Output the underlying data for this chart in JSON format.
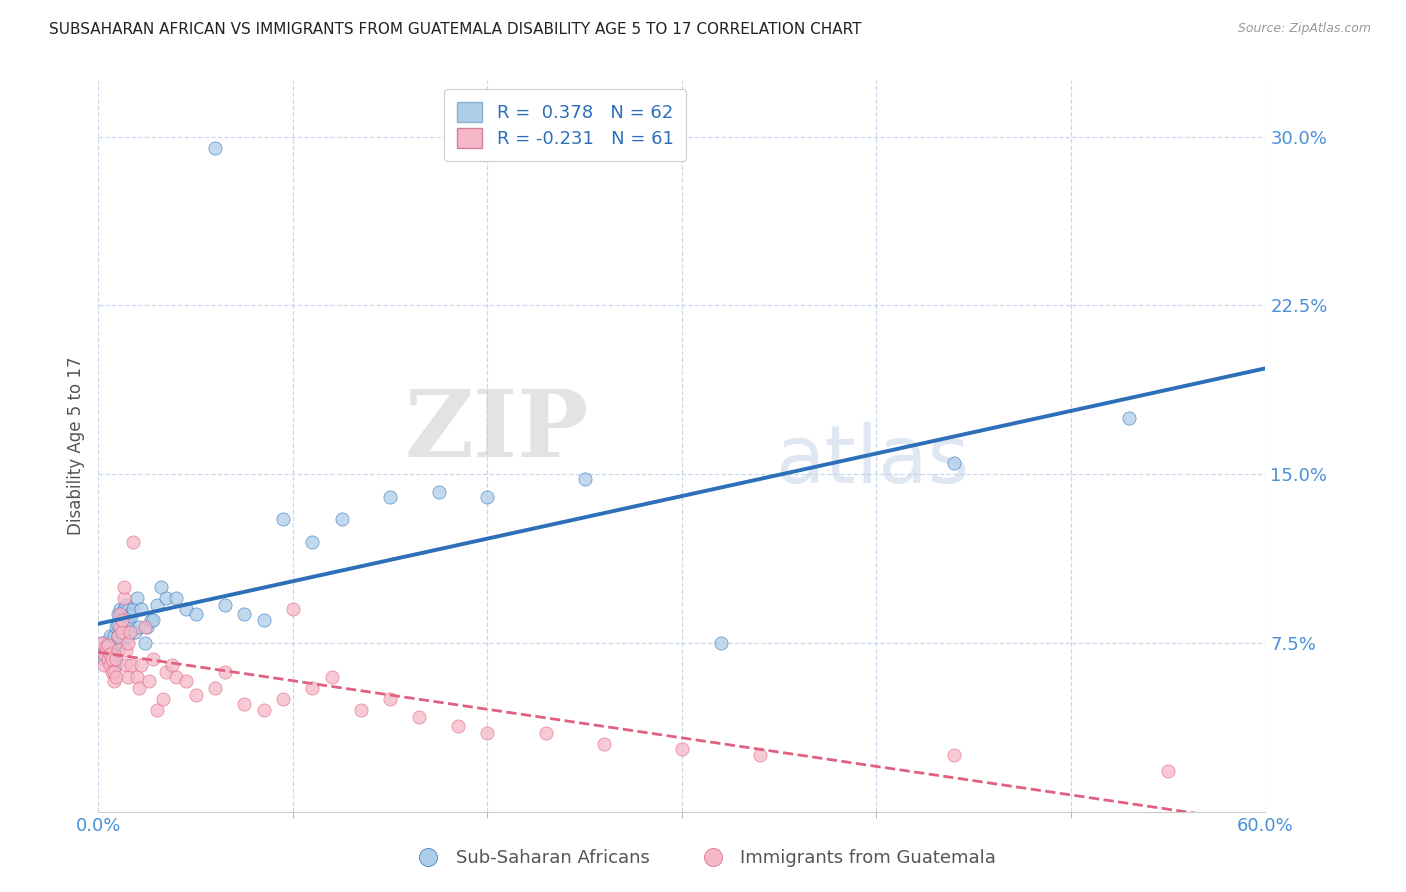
{
  "title": "SUBSAHARAN AFRICAN VS IMMIGRANTS FROM GUATEMALA DISABILITY AGE 5 TO 17 CORRELATION CHART",
  "source": "Source: ZipAtlas.com",
  "ylabel": "Disability Age 5 to 17",
  "xmin": 0.0,
  "xmax": 0.6,
  "ymin": 0.0,
  "ymax": 0.325,
  "yticks": [
    0.0,
    0.075,
    0.15,
    0.225,
    0.3
  ],
  "ytick_labels": [
    "",
    "7.5%",
    "15.0%",
    "22.5%",
    "30.0%"
  ],
  "xtick_positions": [
    0.0,
    0.6
  ],
  "xtick_labels": [
    "0.0%",
    "60.0%"
  ],
  "blue_R": 0.378,
  "blue_N": 62,
  "pink_R": -0.231,
  "pink_N": 61,
  "blue_color": "#aecde8",
  "blue_line_color": "#2e6fba",
  "pink_color": "#f4b8c8",
  "pink_line_color": "#e06080",
  "blue_label": "Sub-Saharan Africans",
  "pink_label": "Immigrants from Guatemala",
  "watermark_zip": "ZIP",
  "watermark_atlas": "atlas",
  "background_color": "#ffffff",
  "grid_color": "#c8d8ec",
  "title_color": "#222222",
  "axis_label_color": "#555555",
  "tick_label_color": "#4a90d9",
  "blue_scatter_x": [
    0.002,
    0.003,
    0.003,
    0.004,
    0.005,
    0.005,
    0.006,
    0.006,
    0.007,
    0.007,
    0.008,
    0.008,
    0.008,
    0.009,
    0.009,
    0.009,
    0.01,
    0.01,
    0.01,
    0.01,
    0.011,
    0.011,
    0.012,
    0.012,
    0.013,
    0.013,
    0.014,
    0.014,
    0.015,
    0.015,
    0.015,
    0.016,
    0.017,
    0.018,
    0.019,
    0.02,
    0.021,
    0.022,
    0.024,
    0.025,
    0.027,
    0.028,
    0.03,
    0.032,
    0.035,
    0.04,
    0.045,
    0.05,
    0.06,
    0.065,
    0.075,
    0.085,
    0.095,
    0.11,
    0.125,
    0.15,
    0.175,
    0.2,
    0.25,
    0.32,
    0.44,
    0.53
  ],
  "blue_scatter_y": [
    0.075,
    0.07,
    0.068,
    0.072,
    0.073,
    0.076,
    0.075,
    0.078,
    0.07,
    0.074,
    0.068,
    0.072,
    0.078,
    0.065,
    0.07,
    0.082,
    0.075,
    0.078,
    0.083,
    0.088,
    0.076,
    0.09,
    0.075,
    0.08,
    0.082,
    0.09,
    0.085,
    0.092,
    0.078,
    0.085,
    0.09,
    0.088,
    0.087,
    0.09,
    0.08,
    0.095,
    0.082,
    0.09,
    0.075,
    0.082,
    0.085,
    0.085,
    0.092,
    0.1,
    0.095,
    0.095,
    0.09,
    0.088,
    0.295,
    0.092,
    0.088,
    0.085,
    0.13,
    0.12,
    0.13,
    0.14,
    0.142,
    0.14,
    0.148,
    0.075,
    0.155,
    0.175
  ],
  "pink_scatter_x": [
    0.002,
    0.003,
    0.003,
    0.004,
    0.005,
    0.005,
    0.006,
    0.006,
    0.007,
    0.007,
    0.008,
    0.008,
    0.009,
    0.009,
    0.01,
    0.01,
    0.011,
    0.011,
    0.012,
    0.012,
    0.013,
    0.013,
    0.014,
    0.014,
    0.015,
    0.015,
    0.016,
    0.017,
    0.018,
    0.02,
    0.021,
    0.022,
    0.024,
    0.026,
    0.028,
    0.03,
    0.033,
    0.035,
    0.038,
    0.04,
    0.045,
    0.05,
    0.06,
    0.065,
    0.075,
    0.085,
    0.095,
    0.1,
    0.11,
    0.12,
    0.135,
    0.15,
    0.165,
    0.185,
    0.2,
    0.23,
    0.26,
    0.3,
    0.34,
    0.44,
    0.55
  ],
  "pink_scatter_y": [
    0.075,
    0.07,
    0.065,
    0.073,
    0.068,
    0.074,
    0.07,
    0.065,
    0.062,
    0.068,
    0.058,
    0.062,
    0.068,
    0.06,
    0.072,
    0.078,
    0.082,
    0.088,
    0.08,
    0.085,
    0.095,
    0.1,
    0.065,
    0.072,
    0.075,
    0.06,
    0.08,
    0.065,
    0.12,
    0.06,
    0.055,
    0.065,
    0.082,
    0.058,
    0.068,
    0.045,
    0.05,
    0.062,
    0.065,
    0.06,
    0.058,
    0.052,
    0.055,
    0.062,
    0.048,
    0.045,
    0.05,
    0.09,
    0.055,
    0.06,
    0.045,
    0.05,
    0.042,
    0.038,
    0.035,
    0.035,
    0.03,
    0.028,
    0.025,
    0.025,
    0.018
  ]
}
